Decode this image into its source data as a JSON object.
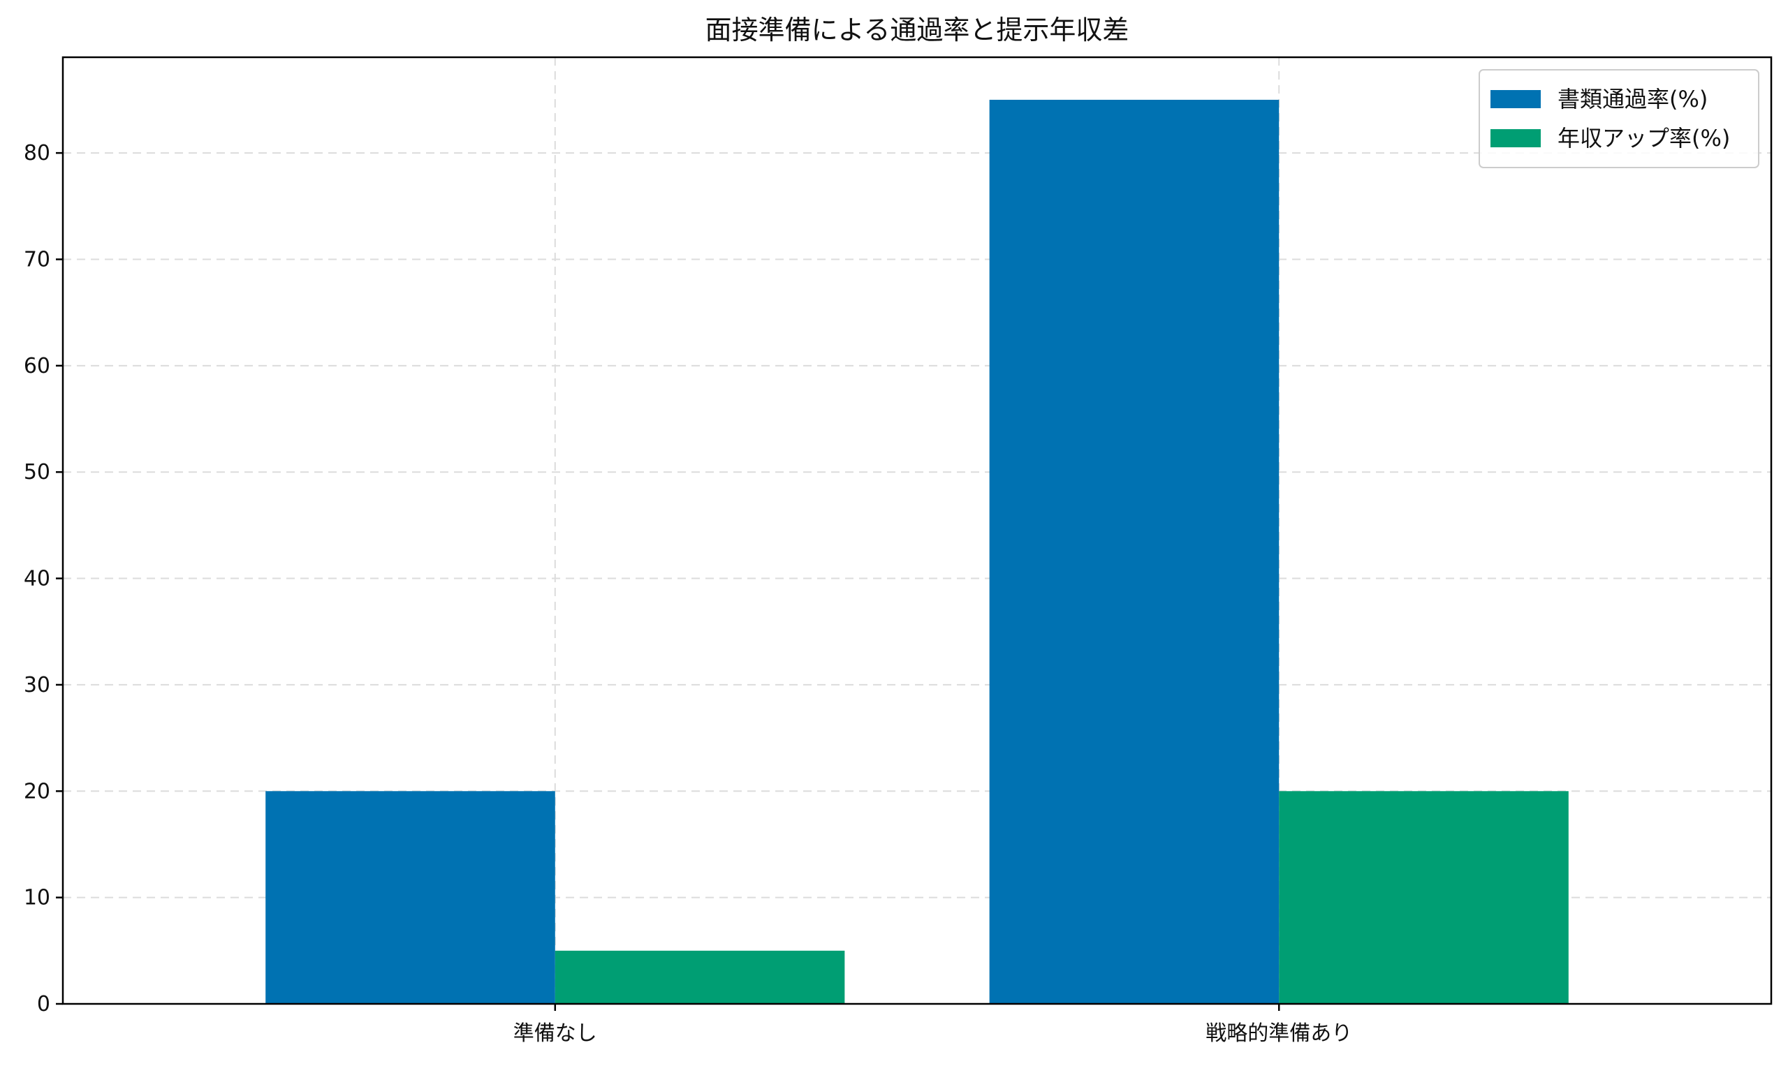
{
  "chart_data": {
    "type": "bar",
    "title": "面接準備による通過率と提示年収差",
    "xlabel": "",
    "ylabel": "",
    "categories": [
      "準備なし",
      "戦略的準備あり"
    ],
    "series": [
      {
        "name": "書類通過率(%)",
        "values": [
          20,
          85
        ],
        "color": "#0072B2"
      },
      {
        "name": "年収アップ率(%)",
        "values": [
          5,
          20
        ],
        "color": "#009E73"
      }
    ],
    "ylim": [
      0,
      89
    ],
    "yticks": [
      0,
      10,
      20,
      30,
      40,
      50,
      60,
      70,
      80
    ],
    "grid": true,
    "legend_position": "top-right"
  }
}
